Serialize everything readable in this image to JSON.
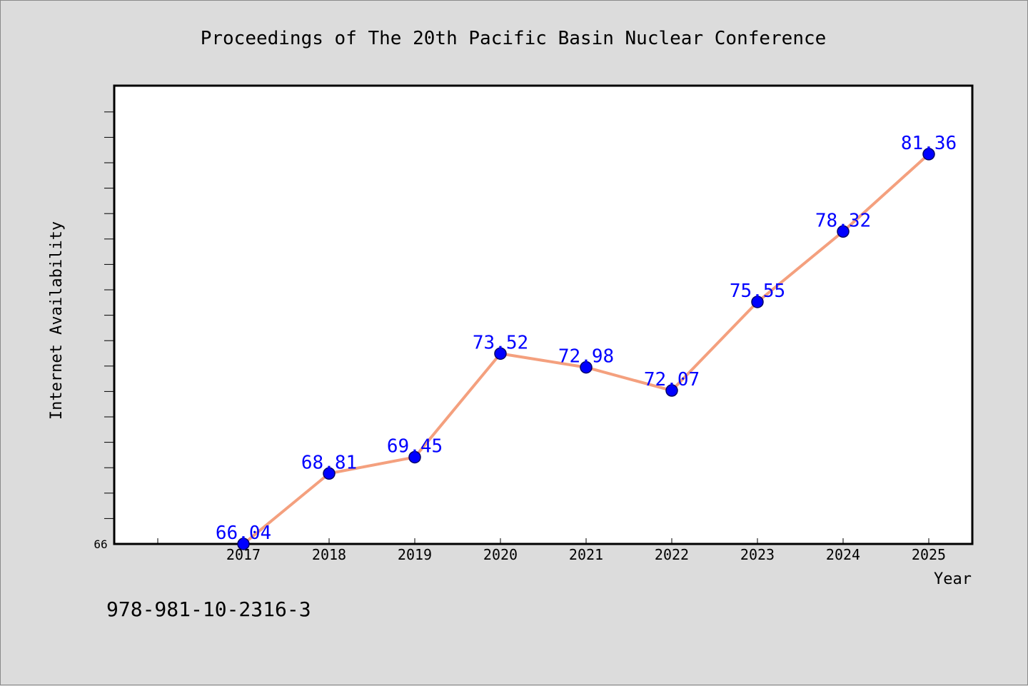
{
  "colors": {
    "background": "#dcdcdc",
    "plot_background": "#ffffff",
    "line": "#f4a07e",
    "marker": "#0000ff",
    "marker_edge": "#000066",
    "label": "#0000ff"
  },
  "footer": {
    "isbn": "978-981-10-2316-3"
  },
  "chart_data": {
    "type": "line",
    "title": "Proceedings of The 20th Pacific Basin Nuclear Conference",
    "xlabel": "Year",
    "ylabel": "Internet Availability",
    "categories": [
      "2017",
      "2018",
      "2019",
      "2020",
      "2021",
      "2022",
      "2023",
      "2024",
      "2025"
    ],
    "series": [
      {
        "values": [
          66.04,
          68.81,
          69.45,
          73.52,
          72.98,
          72.07,
          75.55,
          78.32,
          81.36
        ],
        "labels": [
          "66.04",
          "68.81",
          "69.45",
          "73.52",
          "72.98",
          "72.07",
          "75.55",
          "78.32",
          "81.36"
        ]
      }
    ],
    "y_tick_labels": [
      "66"
    ],
    "ylim": [
      66.04,
      84.05
    ],
    "grid": false,
    "legend": "none"
  }
}
